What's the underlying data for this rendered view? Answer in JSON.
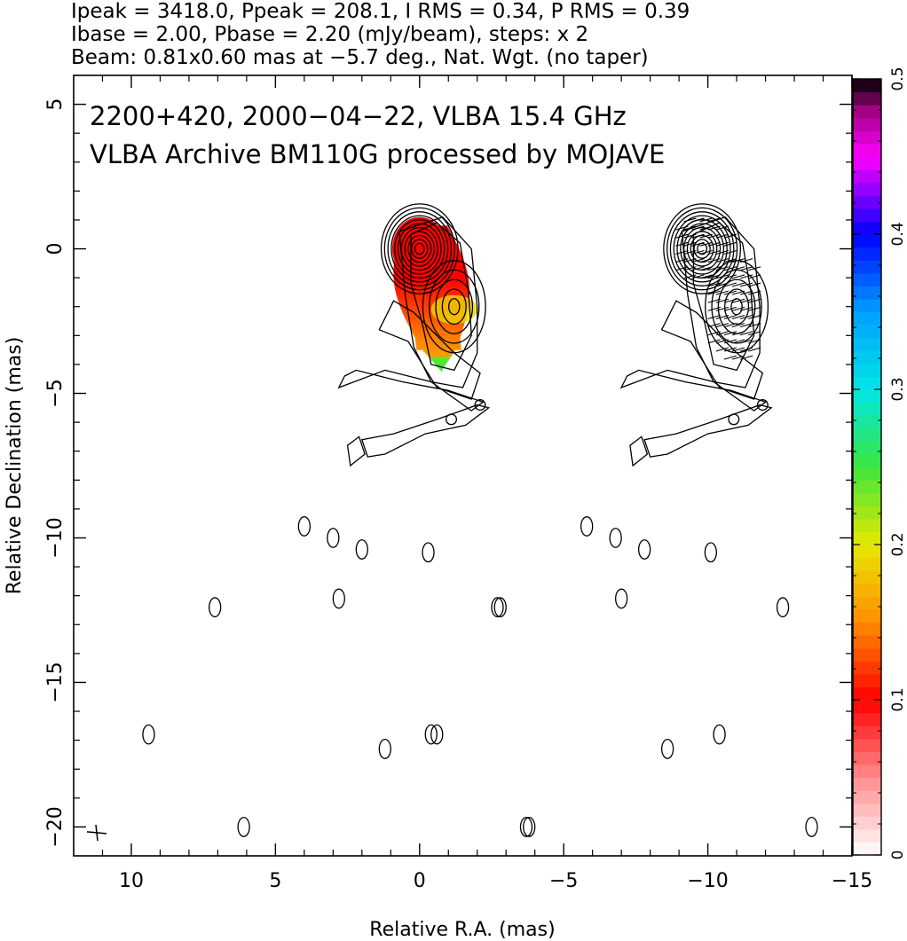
{
  "header": {
    "line1": "Ipeak = 3418.0, Ppeak = 208.1, I RMS = 0.34, P RMS = 0.39",
    "line2": "Ibase = 2.00, Pbase = 2.20 (mJy/beam), steps: x 2",
    "line3": "Beam: 0.81x0.60 mas at −5.7 deg., Nat. Wgt. (no taper)"
  },
  "chart_data": {
    "type": "contour",
    "source_line": "2200+420, 2000−04−22, VLBA 15.4 GHz",
    "archive_line": "VLBA Archive BM110G processed by MOJAVE",
    "xlabel": "Relative R.A. (mas)",
    "ylabel": "Relative Declination (mas)",
    "xlim": [
      12,
      -15
    ],
    "ylim": [
      -21,
      6
    ],
    "x_ticks": [
      {
        "value": 10,
        "label": "10"
      },
      {
        "value": 5,
        "label": "5"
      },
      {
        "value": 0,
        "label": "0"
      },
      {
        "value": -5,
        "label": "−5"
      },
      {
        "value": -10,
        "label": "−10"
      },
      {
        "value": -15,
        "label": "−15"
      }
    ],
    "y_ticks": [
      {
        "value": 5,
        "label": "5"
      },
      {
        "value": 0,
        "label": "0"
      },
      {
        "value": -5,
        "label": "−5"
      },
      {
        "value": -10,
        "label": "−10"
      },
      {
        "value": -15,
        "label": "−15"
      },
      {
        "value": -20,
        "label": "−20"
      }
    ],
    "colorbar": {
      "min": 0,
      "max": 0.5,
      "ticks": [
        {
          "value": 0,
          "label": "0"
        },
        {
          "value": 0.1,
          "label": "0.1"
        },
        {
          "value": 0.2,
          "label": "0.2"
        },
        {
          "value": 0.3,
          "label": "0.3"
        },
        {
          "value": 0.4,
          "label": "0.4"
        },
        {
          "value": 0.5,
          "label": "0.5"
        }
      ],
      "stops": [
        {
          "value": 0.0,
          "color": "#ffffff"
        },
        {
          "value": 0.05,
          "color": "#ff8c8c"
        },
        {
          "value": 0.1,
          "color": "#ff0000"
        },
        {
          "value": 0.15,
          "color": "#ff8c00"
        },
        {
          "value": 0.2,
          "color": "#e8e800"
        },
        {
          "value": 0.25,
          "color": "#3ce63c"
        },
        {
          "value": 0.3,
          "color": "#00e6e6"
        },
        {
          "value": 0.35,
          "color": "#00a0ff"
        },
        {
          "value": 0.4,
          "color": "#0000ff"
        },
        {
          "value": 0.45,
          "color": "#ff00ff"
        },
        {
          "value": 0.48,
          "color": "#a00080"
        },
        {
          "value": 0.5,
          "color": "#000000"
        }
      ]
    },
    "core_component": {
      "x": 0.0,
      "y": 0.0
    },
    "jet_component": {
      "x": -1.2,
      "y": -2.0
    },
    "right_panel_offset_ra": -9.8,
    "contour_levels_mjy": [
      2,
      4,
      8,
      16,
      32,
      64,
      128,
      256,
      512,
      1024,
      2048
    ],
    "polarization_color_extent": {
      "ra_range": [
        1.0,
        -1.6
      ],
      "dec_range": [
        0.8,
        -4.2
      ]
    },
    "isolated_contours": [
      {
        "x": 9.4,
        "y": -16.8
      },
      {
        "x": 7.1,
        "y": -12.4
      },
      {
        "x": 6.1,
        "y": -20.0
      },
      {
        "x": 4.0,
        "y": -9.6
      },
      {
        "x": 3.0,
        "y": -10.0
      },
      {
        "x": 2.0,
        "y": -10.4
      },
      {
        "x": 2.8,
        "y": -12.1
      },
      {
        "x": -0.3,
        "y": -10.5
      },
      {
        "x": 1.2,
        "y": -17.3
      },
      {
        "x": -0.6,
        "y": -16.8
      },
      {
        "x": -2.8,
        "y": -12.4
      },
      {
        "x": -3.8,
        "y": -20.0
      }
    ],
    "beam": {
      "major_mas": 0.81,
      "minor_mas": 0.6,
      "pa_deg": -5.7,
      "x": 11.2,
      "y": -20.2
    }
  }
}
